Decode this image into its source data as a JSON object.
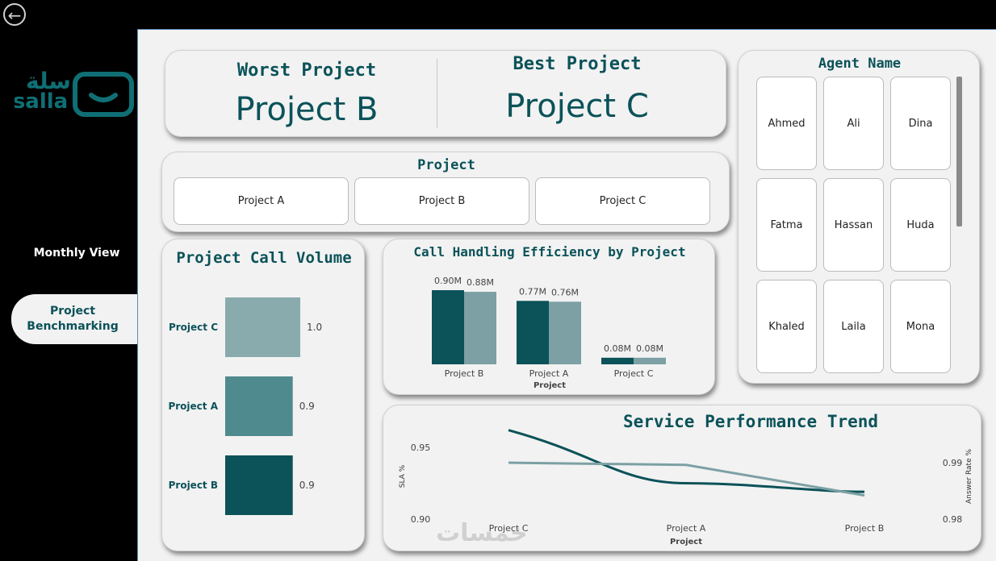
{
  "nav": {
    "back_icon": "back-arrow-icon",
    "logo_text_ar": "سلة",
    "logo_text_en": "salla",
    "items": [
      {
        "label": "Monthly View",
        "active": false
      },
      {
        "label_line1": "Project",
        "label_line2": "Benchmarking",
        "active": true
      }
    ]
  },
  "kpi": {
    "worst_label": "Worst Project",
    "worst_value": "Project B",
    "best_label": "Best Project",
    "best_value": "Project C"
  },
  "project_slicer": {
    "title": "Project",
    "options": [
      "Project A",
      "Project B",
      "Project C"
    ]
  },
  "agent_slicer": {
    "title": "Agent Name",
    "options": [
      "Ahmed",
      "Ali",
      "Dina",
      "Fatma",
      "Hassan",
      "Huda",
      "Khaled",
      "Laila",
      "Mona"
    ]
  },
  "colors": {
    "dark_teal": "#0b5259",
    "mid_teal": "#4f8a8f",
    "light_teal": "#8aabae",
    "bar_light": "#7ca0a4"
  },
  "watermark": "خمسات",
  "chart_data": [
    {
      "type": "bar",
      "title": "Project Call Volume",
      "orientation": "horizontal",
      "categories": [
        "Project C",
        "Project A",
        "Project B"
      ],
      "values": [
        1.0,
        0.9,
        0.9
      ],
      "value_labels": [
        "1.0",
        "0.9",
        "0.9"
      ],
      "colors": [
        "#8aabae",
        "#4f8a8f",
        "#0b5259"
      ]
    },
    {
      "type": "bar",
      "title": "Call Handling Efficiency by Project",
      "xlabel": "Project",
      "categories": [
        "Project B",
        "Project A",
        "Project C"
      ],
      "series": [
        {
          "values": [
            0.9,
            0.77,
            0.08
          ],
          "labels": [
            "0.90M",
            "0.77M",
            "0.08M"
          ],
          "color": "#0b5259"
        },
        {
          "values": [
            0.88,
            0.76,
            0.08
          ],
          "labels": [
            "0.88M",
            "0.76M",
            "0.08M"
          ],
          "color": "#7ca0a4"
        }
      ]
    },
    {
      "type": "line",
      "title": "Service Performance Trend",
      "xlabel": "Project",
      "ylabel_left": "SLA %",
      "ylabel_right": "Answer Rate %",
      "categories": [
        "Project C",
        "Project A",
        "Project B"
      ],
      "yticks_left": [
        "0.95",
        "0.90"
      ],
      "yticks_right": [
        "0.99",
        "0.98"
      ],
      "series": [
        {
          "axis": "left",
          "values": [
            0.962,
            0.925,
            0.919
          ],
          "color": "#0b5259"
        },
        {
          "axis": "right",
          "values": [
            0.99,
            0.9896,
            0.9842
          ],
          "color": "#7ca0a4"
        }
      ]
    }
  ]
}
